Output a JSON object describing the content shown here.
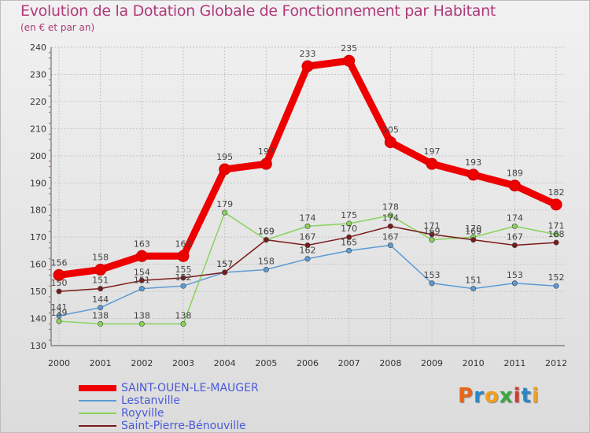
{
  "chart_data": {
    "type": "line",
    "title": "Evolution de la Dotation Globale de Fonctionnement par Habitant",
    "subtitle": "(en € et par an)",
    "xlabel": "",
    "ylabel": "",
    "ylim": [
      130,
      240
    ],
    "yticks": [
      "130",
      "140",
      "150",
      "160",
      "170",
      "180",
      "190",
      "200",
      "210",
      "220",
      "230",
      "240"
    ],
    "categories": [
      "2000",
      "2001",
      "2002",
      "2003",
      "2004",
      "2005",
      "2006",
      "2007",
      "2008",
      "2009",
      "2010",
      "2011",
      "2012"
    ],
    "grid": true,
    "series": [
      {
        "name": "SAINT-OUEN-LE-MAUGER",
        "color": "#ee0000",
        "values": [
          156,
          158,
          163,
          163,
          195,
          197,
          233,
          235,
          205,
          197,
          193,
          189,
          182
        ],
        "labels": [
          "156",
          "158",
          "163",
          "163",
          "195",
          "197",
          "233",
          "235",
          "205",
          "197",
          "193",
          "189",
          "182"
        ]
      },
      {
        "name": "Lestanville",
        "color": "#5b9bd5",
        "values": [
          141,
          144,
          151,
          152,
          157,
          158,
          162,
          165,
          167,
          153,
          151,
          153,
          152
        ],
        "labels": [
          "141",
          "144",
          "151",
          "152",
          "157",
          "158",
          "162",
          "165",
          "167",
          "153",
          "151",
          "153",
          "152"
        ]
      },
      {
        "name": "Royville",
        "color": "#88d35a",
        "values": [
          139,
          138,
          138,
          138,
          179,
          169,
          174,
          175,
          178,
          169,
          170,
          174,
          171
        ],
        "labels": [
          "139",
          "138",
          "138",
          "138",
          "179",
          "169",
          "174",
          "175",
          "178",
          "169",
          "170",
          "174",
          "171"
        ]
      },
      {
        "name": "Saint-Pierre-Bénouville",
        "color": "#7a1a1a",
        "values": [
          150,
          151,
          154,
          155,
          157,
          169,
          167,
          170,
          174,
          171,
          169,
          167,
          168
        ],
        "labels": [
          "150",
          "151",
          "154",
          "155",
          "157",
          "169",
          "167",
          "170",
          "174",
          "171",
          "169",
          "167",
          "168"
        ]
      }
    ]
  },
  "logo": {
    "text": "Proxiti"
  }
}
